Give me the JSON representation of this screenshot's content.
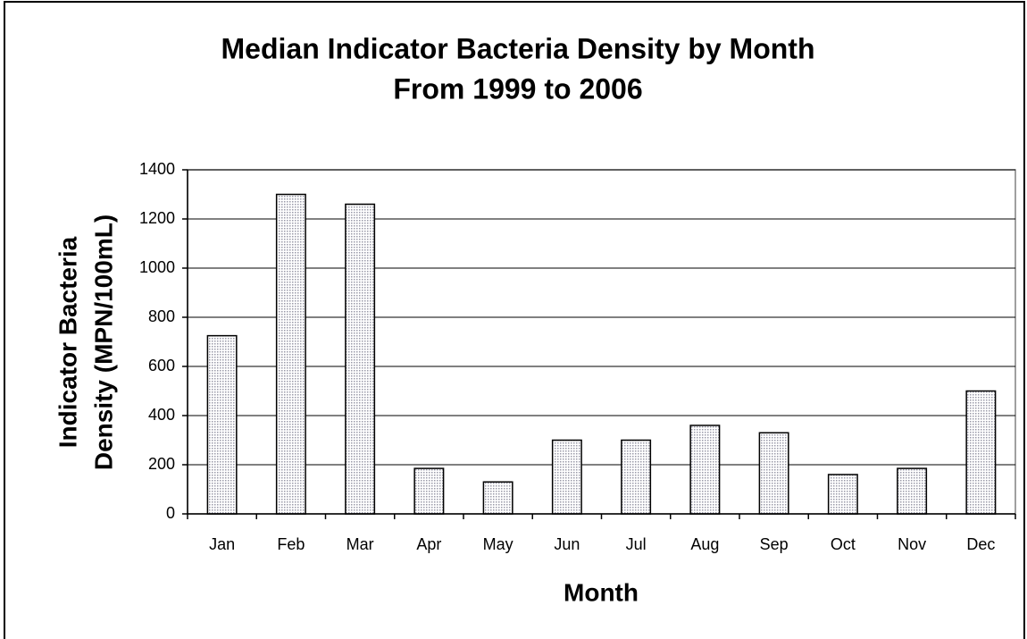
{
  "chart_data": {
    "type": "bar",
    "title": [
      "Median Indicator Bacteria Density by Month",
      "From 1999 to 2006"
    ],
    "x_label": "Month",
    "y_label": [
      "Indicator Bacteria",
      "Density (MPN/100mL)"
    ],
    "categories": [
      "Jan",
      "Feb",
      "Mar",
      "Apr",
      "May",
      "Jun",
      "Jul",
      "Aug",
      "Sep",
      "Oct",
      "Nov",
      "Dec"
    ],
    "values": [
      725,
      1300,
      1260,
      185,
      130,
      300,
      300,
      360,
      330,
      160,
      185,
      500
    ],
    "color": "#d9d9e6",
    "ylim": [
      0,
      1400
    ],
    "yticks": [
      0,
      200,
      400,
      600,
      800,
      1000,
      1200,
      1400
    ],
    "grid": true
  }
}
